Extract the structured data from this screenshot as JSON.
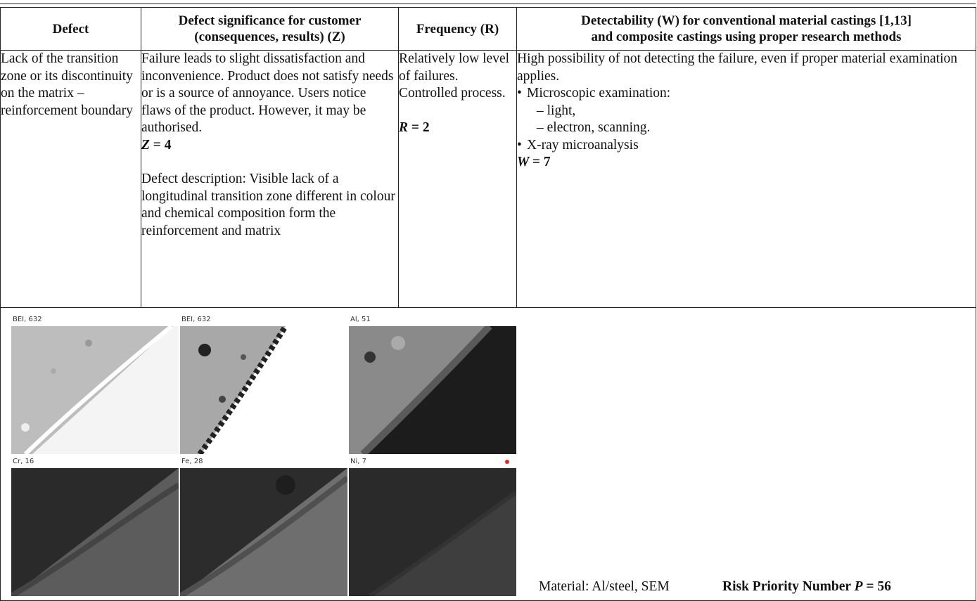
{
  "headers": {
    "defect": "Defect",
    "significance_l1": "Defect significance for customer",
    "significance_l2": "(consequences, results) (Z)",
    "frequency": "Frequency (R)",
    "detectability_l1": "Detectability (W) for conventional material castings [1,13]",
    "detectability_l2": "and composite castings using proper research methods"
  },
  "defect": {
    "text": "Lack of the transition zone or its discontinuity on the matrix – reinforcement boundary"
  },
  "significance": {
    "text": "Failure leads to slight dissatisfaction and inconvenience. Product does not satisfy needs or is a source of annoyance. Users notice flaws of the product. However, it may be authorised.",
    "z_label": "Z",
    "z_value": "= 4",
    "description": "Defect description: Visible lack of a longitudinal transition zone different in colour and chemical composition form the reinforcement and matrix"
  },
  "frequency": {
    "text": "Relatively low level of failures. Controlled process.",
    "r_label": "R",
    "r_value": "= 2"
  },
  "detectability": {
    "intro": "High possibility of not detecting the failure, even if proper material examination applies.",
    "items": [
      "Microscopic examination:",
      "X-ray microanalysis"
    ],
    "subitems": [
      "– light,",
      "– electron, scanning."
    ],
    "w_label": "W",
    "w_value": "= 7"
  },
  "images": {
    "labels": [
      "BEI, 632",
      "BEI, 632",
      "Al, 51",
      "Cr, 16",
      "Fe, 28",
      "Ni, 7"
    ]
  },
  "footer": {
    "material": "Material: Al/steel, SEM",
    "rpn_text": "Risk Priority Number",
    "rpn_symbol": "P",
    "rpn_value": "= 56"
  }
}
